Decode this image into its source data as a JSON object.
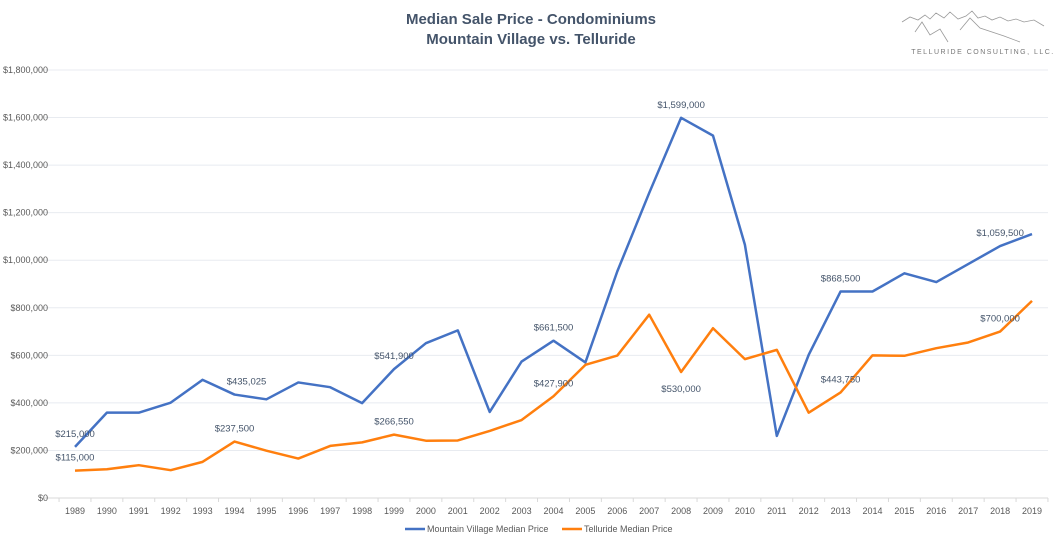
{
  "chart_data": {
    "type": "line",
    "title": "Median Sale Price - Condominiums",
    "subtitle": "Mountain Village vs. Telluride",
    "xlabel": "",
    "ylabel": "",
    "ylim": [
      0,
      1800000
    ],
    "yticks": [
      "$0",
      "$200,000",
      "$400,000",
      "$600,000",
      "$800,000",
      "$1,000,000",
      "$1,200,000",
      "$1,400,000",
      "$1,600,000",
      "$1,800,000"
    ],
    "grid": true,
    "legend": "bottom",
    "categories": [
      "1989",
      "1990",
      "1991",
      "1992",
      "1993",
      "1994",
      "1995",
      "1996",
      "1997",
      "1998",
      "1999",
      "2000",
      "2001",
      "2002",
      "2003",
      "2004",
      "2005",
      "2006",
      "2007",
      "2008",
      "2009",
      "2010",
      "2011",
      "2012",
      "2013",
      "2014",
      "2015",
      "2016",
      "2017",
      "2018",
      "2019"
    ],
    "series": [
      {
        "name": "Mountain Village Median Price",
        "color": "#4472c4",
        "values": [
          215000,
          359000,
          359000,
          401000,
          497000,
          435025,
          415000,
          486000,
          466000,
          399000,
          541900,
          651000,
          705000,
          362000,
          574000,
          661500,
          570000,
          953000,
          1283000,
          1599000,
          1524000,
          1065000,
          261000,
          602000,
          868500,
          868500,
          945000,
          908000,
          984000,
          1059500,
          1110000
        ],
        "data_labels": {
          "1989": "$215,000",
          "1994": "$435,025",
          "1999": "$541,900",
          "2004": "$661,500",
          "2008": "$1,599,000",
          "2013": "$868,500",
          "2018": "$1,059,500"
        }
      },
      {
        "name": "Telluride Median Price",
        "color": "#ff7f0e",
        "values": [
          115000,
          121000,
          138000,
          117000,
          152000,
          237500,
          199000,
          166000,
          219000,
          234000,
          266550,
          241000,
          242000,
          282000,
          328000,
          427900,
          560000,
          599000,
          771000,
          530000,
          714000,
          584000,
          623000,
          359000,
          443750,
          600000,
          598000,
          630000,
          654000,
          700000,
          829000
        ],
        "data_labels": {
          "1989": "$115,000",
          "1994": "$237,500",
          "1999": "$266,550",
          "2004": "$427,900",
          "2008": "$530,000",
          "2013": "$443,750",
          "2018": "$700,000"
        }
      }
    ]
  },
  "logo": {
    "text": "TELLURIDE CONSULTING, LLC."
  }
}
